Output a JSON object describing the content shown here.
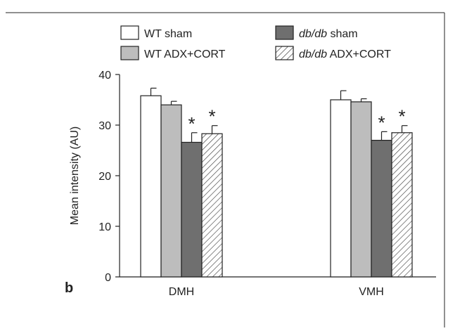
{
  "panel_label": "b",
  "chart_data": {
    "type": "bar",
    "ylabel": "Mean intensity (AU)",
    "xlabel": "",
    "ylim": [
      0,
      40
    ],
    "yticks": [
      0,
      10,
      20,
      30,
      40
    ],
    "categories": [
      "DMH",
      "VMH"
    ],
    "legend_position": "top",
    "series": [
      {
        "name_main": "WT sham",
        "name_italic": "",
        "name_rest": "",
        "fill": "#ffffff",
        "pattern": "none",
        "values": [
          35.8,
          35.0
        ],
        "errors": [
          1.5,
          1.8
        ]
      },
      {
        "name_main": "WT ADX+CORT",
        "name_italic": "",
        "name_rest": "",
        "fill": "#bdbdbd",
        "pattern": "none",
        "values": [
          34.0,
          34.6
        ],
        "errors": [
          0.7,
          0.6
        ]
      },
      {
        "name_main": "",
        "name_italic": "db/db",
        "name_rest": " sham",
        "fill": "#6f6f6f",
        "pattern": "none",
        "values": [
          26.6,
          27.0
        ],
        "errors": [
          1.9,
          1.7
        ]
      },
      {
        "name_main": "",
        "name_italic": "db/db",
        "name_rest": " ADX+CORT",
        "fill": "#ffffff",
        "pattern": "hatch",
        "values": [
          28.3,
          28.5
        ],
        "errors": [
          1.6,
          1.4
        ]
      }
    ],
    "significance_marker": "*",
    "significant_series": [
      2,
      3
    ]
  }
}
